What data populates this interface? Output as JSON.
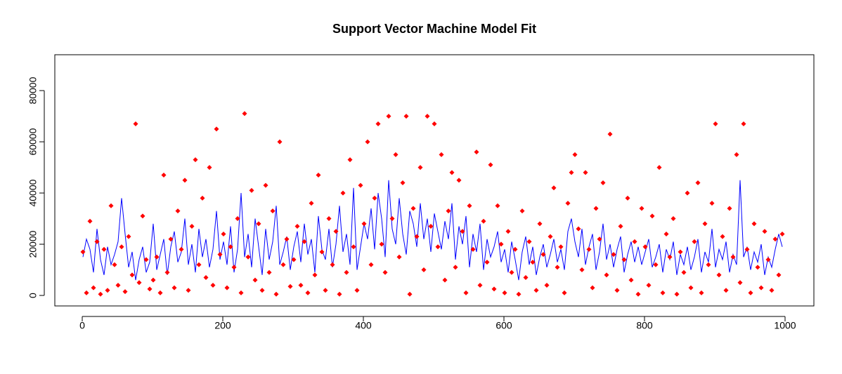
{
  "chart_data": {
    "type": "line-scatter",
    "title": "Support Vector Machine Model Fit",
    "x": [
      1,
      6,
      11,
      16,
      21,
      26,
      31,
      36,
      41,
      46,
      51,
      56,
      61,
      66,
      71,
      76,
      81,
      86,
      91,
      96,
      101,
      106,
      111,
      116,
      121,
      126,
      131,
      136,
      141,
      146,
      151,
      156,
      161,
      166,
      171,
      176,
      181,
      186,
      191,
      196,
      201,
      206,
      211,
      216,
      221,
      226,
      231,
      236,
      241,
      246,
      251,
      256,
      261,
      266,
      271,
      276,
      281,
      286,
      291,
      296,
      301,
      306,
      311,
      316,
      321,
      326,
      331,
      336,
      341,
      346,
      351,
      356,
      361,
      366,
      371,
      376,
      381,
      386,
      391,
      396,
      401,
      406,
      411,
      416,
      421,
      426,
      431,
      436,
      441,
      446,
      451,
      456,
      461,
      466,
      471,
      476,
      481,
      486,
      491,
      496,
      501,
      506,
      511,
      516,
      521,
      526,
      531,
      536,
      541,
      546,
      551,
      556,
      561,
      566,
      571,
      576,
      581,
      586,
      591,
      596,
      601,
      606,
      611,
      616,
      621,
      626,
      631,
      636,
      641,
      646,
      651,
      656,
      661,
      666,
      671,
      676,
      681,
      686,
      691,
      696,
      701,
      706,
      711,
      716,
      721,
      726,
      731,
      736,
      741,
      746,
      751,
      756,
      761,
      766,
      771,
      776,
      781,
      786,
      791,
      796,
      801,
      806,
      811,
      816,
      821,
      826,
      831,
      836,
      841,
      846,
      851,
      856,
      861,
      866,
      871,
      876,
      881,
      886,
      891,
      896,
      901,
      906,
      911,
      916,
      921,
      926,
      931,
      936,
      941,
      946,
      951,
      956,
      961,
      966,
      971,
      976,
      981,
      986,
      991,
      996
    ],
    "series": [
      {
        "color": "#0000ff",
        "style": "line",
        "values": [
          15000,
          22000,
          18000,
          9000,
          26000,
          14000,
          8000,
          19000,
          12000,
          16000,
          21000,
          38000,
          24000,
          11000,
          17000,
          6000,
          14000,
          19000,
          9000,
          13000,
          28000,
          10000,
          16000,
          22000,
          8000,
          19000,
          25000,
          13000,
          17000,
          30000,
          12000,
          20000,
          9000,
          26000,
          15000,
          22000,
          11000,
          18000,
          33000,
          14000,
          21000,
          12000,
          27000,
          9000,
          18000,
          40000,
          15000,
          24000,
          11000,
          30000,
          19000,
          8000,
          26000,
          14000,
          21000,
          35000,
          12000,
          17000,
          23000,
          10000,
          19000,
          25000,
          13000,
          28000,
          16000,
          22000,
          9000,
          31000,
          18000,
          14000,
          26000,
          11000,
          20000,
          35000,
          17000,
          24000,
          12000,
          42000,
          10000,
          19000,
          28000,
          22000,
          34000,
          18000,
          40000,
          30000,
          15000,
          45000,
          26000,
          20000,
          38000,
          24000,
          16000,
          33000,
          28000,
          19000,
          36000,
          22000,
          30000,
          17000,
          32000,
          25000,
          18000,
          29000,
          22000,
          36000,
          14000,
          27000,
          20000,
          31000,
          11000,
          24000,
          17000,
          28000,
          10000,
          22000,
          15000,
          19000,
          25000,
          13000,
          18000,
          9000,
          21000,
          14000,
          6000,
          17000,
          23000,
          12000,
          19000,
          8000,
          15000,
          20000,
          11000,
          16000,
          22000,
          13000,
          18000,
          10000,
          25000,
          30000,
          21000,
          15000,
          26000,
          12000,
          19000,
          24000,
          10000,
          17000,
          28000,
          14000,
          20000,
          11000,
          18000,
          23000,
          9000,
          16000,
          21000,
          13000,
          19000,
          12000,
          17000,
          22000,
          11000,
          15000,
          20000,
          9000,
          18000,
          14000,
          21000,
          8000,
          16000,
          12000,
          19000,
          10000,
          15000,
          22000,
          9000,
          17000,
          13000,
          26000,
          11000,
          18000,
          14000,
          21000,
          9000,
          16000,
          12000,
          45000,
          15000,
          19000,
          10000,
          17000,
          13000,
          20000,
          8000,
          15000,
          11000,
          18000,
          24000,
          19000
        ]
      },
      {
        "color": "#ff0000",
        "style": "points",
        "marker": "diamond",
        "values": [
          17000,
          1000,
          29000,
          3000,
          21000,
          500,
          18000,
          2000,
          35000,
          12000,
          4000,
          19000,
          1500,
          23000,
          8000,
          67000,
          5000,
          31000,
          14000,
          2500,
          6000,
          15000,
          1000,
          47000,
          9000,
          22000,
          3000,
          33000,
          18000,
          45000,
          2000,
          27000,
          53000,
          12000,
          38000,
          7000,
          50000,
          4000,
          65000,
          16000,
          24000,
          3000,
          19000,
          11000,
          30000,
          1000,
          71000,
          15000,
          41000,
          6000,
          28000,
          2000,
          43000,
          9000,
          33000,
          500,
          60000,
          12000,
          22000,
          3500,
          14000,
          27000,
          4000,
          21000,
          1000,
          36000,
          8000,
          47000,
          17000,
          2000,
          30000,
          12000,
          25000,
          500,
          40000,
          9000,
          53000,
          19000,
          2000,
          43000,
          28000,
          60000,
          12000,
          38000,
          67000,
          20000,
          9000,
          70000,
          30000,
          55000,
          15000,
          44000,
          70000,
          500,
          34000,
          23000,
          50000,
          10000,
          70000,
          27000,
          67000,
          19000,
          55000,
          6000,
          33000,
          48000,
          11000,
          45000,
          25000,
          1000,
          35000,
          18000,
          56000,
          4000,
          29000,
          13000,
          51000,
          2500,
          35000,
          20000,
          1000,
          25000,
          9000,
          18000,
          500,
          33000,
          7000,
          21000,
          13000,
          2000,
          28000,
          16000,
          4000,
          23000,
          42000,
          11000,
          19000,
          1000,
          36000,
          48000,
          55000,
          26000,
          10000,
          48000,
          18000,
          3000,
          34000,
          22000,
          44000,
          8000,
          63000,
          16000,
          2000,
          27000,
          14000,
          38000,
          6000,
          21000,
          500,
          34000,
          19000,
          4000,
          31000,
          12000,
          50000,
          1000,
          24000,
          15000,
          30000,
          500,
          17000,
          9000,
          40000,
          3000,
          21000,
          44000,
          1000,
          28000,
          12000,
          36000,
          67000,
          8000,
          23000,
          2000,
          34000,
          15000,
          55000,
          5000,
          67000,
          18000,
          1000,
          28000,
          11000,
          3000,
          25000,
          14000,
          2000,
          22000,
          8000,
          24000
        ]
      }
    ],
    "xlim": [
      -39,
      1041
    ],
    "ylim": [
      -4100,
      94000
    ],
    "xticks": [
      0,
      200,
      400,
      600,
      800,
      1000
    ],
    "yticks": [
      0,
      20000,
      40000,
      60000,
      80000
    ]
  }
}
